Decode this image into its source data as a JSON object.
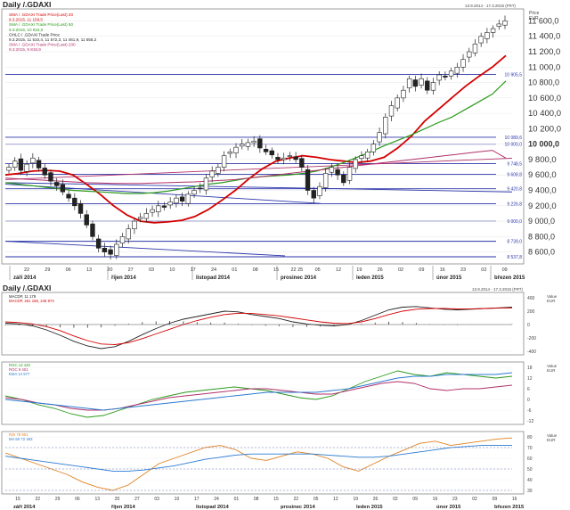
{
  "main_title": "Daily /.GDAXI",
  "main_range": "13.9.2014 - 17.3.2015 (FRT)",
  "sub_title": "Daily /.GDAXI",
  "sub_range": "13.9.2014 - 17.3.2015 (FRT)",
  "price_header": [
    "Price",
    "EUR"
  ],
  "value_header": [
    "Value",
    "EUR"
  ],
  "legend_main": [
    {
      "text": "SMA / .GDAXI Trade Price(Last)  20",
      "color": "#d40000"
    },
    {
      "text": "9.3.2015, 11 159,5",
      "color": "#d40000"
    },
    {
      "text": "SMA / .GDAXI Trade Price(Last)  50",
      "color": "#2a9a1a"
    },
    {
      "text": "9.3.2015, 10 816,0",
      "color": "#2a9a1a"
    },
    {
      "text": "OHLC / .GDAXI Trade Price",
      "color": "#222222"
    },
    {
      "text": "9.3.2015, 11 510,4, 11 572,3, 11 461,9, 11 558,2",
      "color": "#222222"
    },
    {
      "text": "SMA / .GDAXI Trade Price(Last)  200",
      "color": "#b0306a"
    },
    {
      "text": "9.3.2015, 9 818,9",
      "color": "#b0306a"
    }
  ],
  "legend_macd": [
    {
      "text": "MACDP, 11 179",
      "color": "#222222"
    },
    {
      "text": "MACDP, 261 166, 246 974",
      "color": "#d40000"
    }
  ],
  "legend_roc": [
    {
      "text": "ROC 13 420",
      "color": "#2a9a1a"
    },
    {
      "text": "ROC 8 401",
      "color": "#b0306a"
    },
    {
      "text": "EMA 14 577",
      "color": "#2a7ad0"
    }
  ],
  "legend_rsi": [
    {
      "text": "RSI 78 901",
      "color": "#e08020"
    },
    {
      "text": "MA 60 72 463",
      "color": "#2a7ad0"
    }
  ],
  "x_axis": {
    "day_labels_main": [
      "22",
      "29",
      "06",
      "13",
      "20",
      "27",
      "03",
      "10",
      "17",
      "24",
      "01",
      "08",
      "15",
      "22 25",
      "05",
      "12",
      "19",
      "26",
      "02",
      "09",
      "16",
      "23",
      "02",
      "09"
    ],
    "day_labels_sub": [
      "15",
      "22",
      "29",
      "06",
      "13",
      "20",
      "27",
      "03",
      "10",
      "17",
      "24",
      "01",
      "08",
      "15",
      "22",
      "05",
      "12",
      "19",
      "26",
      "02",
      "09",
      "16",
      "23",
      "02",
      "09",
      "16"
    ],
    "months": [
      "září 2014",
      "říjen 2014",
      "listopad 2014",
      "prosinec 2014",
      "leden 2015",
      "únor 2015",
      "březen 2015"
    ]
  },
  "main_price_labels": [
    "11 600,0",
    "11 400,0",
    "11 200,0",
    "11 000,0",
    "10 800,0",
    "10 600,0",
    "10 400,0",
    "10 200,0",
    "10 000,0",
    "9 800,0",
    "9 600,0",
    "9 400,0",
    "9 200,0",
    "9 000,0",
    "8 800,0",
    "8 600,0"
  ],
  "level_labels": [
    "10 905,5",
    "10 089,6",
    "10 000,0",
    "9 748,5",
    "9 608,8",
    "9 420,8",
    "9 226,8",
    "9 000,0",
    "8 739,0",
    "8 537,8"
  ],
  "macd_axis": [
    "400",
    "200",
    "0",
    "-200",
    "-400"
  ],
  "roc_axis": [
    "18",
    "12",
    "6",
    "0",
    "-6",
    "-12"
  ],
  "rsi_axis": [
    "80",
    "70",
    "60",
    "50",
    "40",
    "30"
  ],
  "colors": {
    "candle": "#222222",
    "sma20": "#d40000",
    "sma50": "#2a9a1a",
    "sma200": "#b0306a",
    "level": "#2b35a8",
    "trend": "#2b35a8",
    "rsi": "#e08020",
    "ema": "#2a7ad0"
  },
  "chart_data": [
    {
      "type": "candlestick",
      "title": "Daily /.GDAXI",
      "ylabel": "Price EUR",
      "ylim": [
        8537.8,
        11670
      ],
      "horizontal_levels": [
        10905.5,
        10089.6,
        10000.0,
        9748.5,
        9608.8,
        9420.8,
        9226.8,
        9000.0,
        8739.0,
        8537.8
      ],
      "close": [
        9700,
        9780,
        9660,
        9740,
        9820,
        9690,
        9600,
        9520,
        9460,
        9380,
        9300,
        9200,
        9100,
        8950,
        8800,
        8650,
        8600,
        8570,
        8700,
        8800,
        8900,
        9000,
        9050,
        9100,
        9150,
        9200,
        9180,
        9250,
        9300,
        9260,
        9350,
        9400,
        9420,
        9560,
        9650,
        9700,
        9850,
        9900,
        9960,
        10000,
        10020,
        10040,
        9950,
        9900,
        9860,
        9800,
        9820,
        9850,
        9800,
        9700,
        9400,
        9300,
        9450,
        9620,
        9700,
        9600,
        9500,
        9700,
        9800,
        9850,
        9900,
        10000,
        10150,
        10350,
        10500,
        10600,
        10700,
        10850,
        10750,
        10850,
        10700,
        10800,
        10900,
        10870,
        10950,
        11000,
        11100,
        11200,
        11300,
        11400,
        11450,
        11500,
        11560,
        11600
      ],
      "series": [
        {
          "name": "SMA 20",
          "values": [
            9600,
            9620,
            9650,
            9660,
            9650,
            9600,
            9480,
            9350,
            9200,
            9080,
            9000,
            8980,
            8990,
            9010,
            9060,
            9150,
            9270,
            9400,
            9550,
            9680,
            9780,
            9820,
            9850,
            9830,
            9800,
            9780,
            9760,
            9780,
            9830,
            9950,
            10100,
            10300,
            10450,
            10600,
            10750,
            10880,
            11000,
            11150
          ],
          "period": 20
        },
        {
          "name": "SMA 50",
          "values": [
            9500,
            9480,
            9460,
            9440,
            9420,
            9400,
            9390,
            9380,
            9370,
            9360,
            9360,
            9370,
            9390,
            9420,
            9450,
            9480,
            9500,
            9530,
            9560,
            9580,
            9590,
            9600,
            9620,
            9650,
            9700,
            9760,
            9830,
            9900,
            9980,
            10050,
            10120,
            10200,
            10280,
            10350,
            10450,
            10550,
            10650,
            10820
          ],
          "period": 50
        },
        {
          "name": "SMA 200",
          "values": [
            9560,
            9550,
            9540,
            9530,
            9520,
            9510,
            9500,
            9495,
            9490,
            9490,
            9490,
            9495,
            9500,
            9505,
            9510,
            9520,
            9530,
            9540,
            9560,
            9580,
            9600,
            9620,
            9640,
            9660,
            9680,
            9700,
            9720,
            9740,
            9760,
            9780,
            9800,
            9820,
            9840,
            9860,
            9880,
            9900,
            9920,
            9819
          ],
          "period": 200
        }
      ]
    },
    {
      "type": "line",
      "title": "MACD",
      "ylim": [
        -400,
        400
      ],
      "series": [
        {
          "name": "MACDP",
          "values": [
            20,
            10,
            -20,
            -80,
            -160,
            -250,
            -320,
            -360,
            -330,
            -250,
            -150,
            -60,
            20,
            80,
            120,
            160,
            200,
            190,
            150,
            120,
            90,
            40,
            10,
            -10,
            -20,
            0,
            60,
            140,
            220,
            260,
            270,
            250,
            230,
            220,
            230,
            240,
            250,
            260
          ]
        },
        {
          "name": "MACDP",
          "values": [
            40,
            30,
            10,
            -30,
            -90,
            -170,
            -240,
            -290,
            -300,
            -270,
            -210,
            -140,
            -70,
            0,
            60,
            110,
            150,
            170,
            165,
            150,
            130,
            100,
            70,
            40,
            20,
            15,
            40,
            90,
            150,
            200,
            230,
            240,
            240,
            235,
            235,
            240,
            245,
            250
          ]
        }
      ]
    },
    {
      "type": "line",
      "title": "ROC",
      "ylim": [
        -12,
        18
      ],
      "series": [
        {
          "name": "ROC",
          "values": [
            2,
            0,
            -3,
            -5,
            -8,
            -10,
            -9,
            -6,
            -3,
            0,
            2,
            4,
            5,
            6,
            7,
            6,
            5,
            3,
            1,
            0,
            2,
            6,
            10,
            13,
            16,
            14,
            13,
            15,
            14,
            13,
            12,
            13
          ]
        },
        {
          "name": "ROC",
          "values": [
            1,
            0,
            -2,
            -3,
            -5,
            -6,
            -6,
            -5,
            -3,
            -1,
            1,
            2,
            3,
            4,
            5,
            6,
            6,
            5,
            4,
            3,
            3,
            5,
            7,
            9,
            10,
            9,
            6,
            5,
            6,
            6,
            7,
            8
          ]
        },
        {
          "name": "EMA",
          "values": [
            0,
            -1,
            -2,
            -3,
            -4,
            -5,
            -6,
            -5,
            -4,
            -3,
            -2,
            -1,
            0,
            1,
            2,
            3,
            4,
            4,
            4,
            4,
            5,
            6,
            8,
            10,
            12,
            13,
            13,
            14,
            14,
            14,
            14,
            15
          ]
        }
      ]
    },
    {
      "type": "line",
      "title": "RSI",
      "ylim": [
        30,
        80
      ],
      "series": [
        {
          "name": "RSI",
          "values": [
            65,
            60,
            55,
            50,
            45,
            38,
            33,
            30,
            35,
            45,
            55,
            60,
            65,
            70,
            72,
            68,
            60,
            58,
            62,
            66,
            64,
            60,
            52,
            48,
            55,
            62,
            68,
            74,
            76,
            72,
            74,
            76,
            78,
            79
          ]
        },
        {
          "name": "MA 60",
          "values": [
            62,
            60,
            58,
            56,
            54,
            52,
            50,
            48,
            48,
            49,
            51,
            53,
            56,
            59,
            61,
            63,
            64,
            64,
            64,
            64,
            64,
            63,
            62,
            61,
            61,
            62,
            64,
            66,
            68,
            70,
            71,
            72,
            72,
            72
          ]
        }
      ]
    }
  ]
}
